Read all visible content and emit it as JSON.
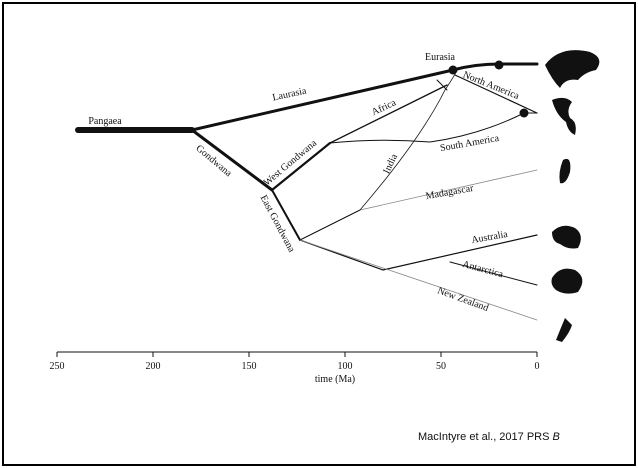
{
  "labels": [
    "Pangaea",
    "Laurasia",
    "Gondwana",
    "Eurasia",
    "North America",
    "Africa",
    "West Gondwana",
    "South America",
    "India",
    "Madagascar",
    "East Gondwana",
    "Australia",
    "Antarctica",
    "New Zealand"
  ],
  "axis": {
    "label": "time (Ma)",
    "ticks": [
      250,
      200,
      150,
      100,
      50,
      0
    ]
  },
  "citation": {
    "text": "MacIntyre et al., 2017 PRS",
    "emphasis": "B"
  }
}
